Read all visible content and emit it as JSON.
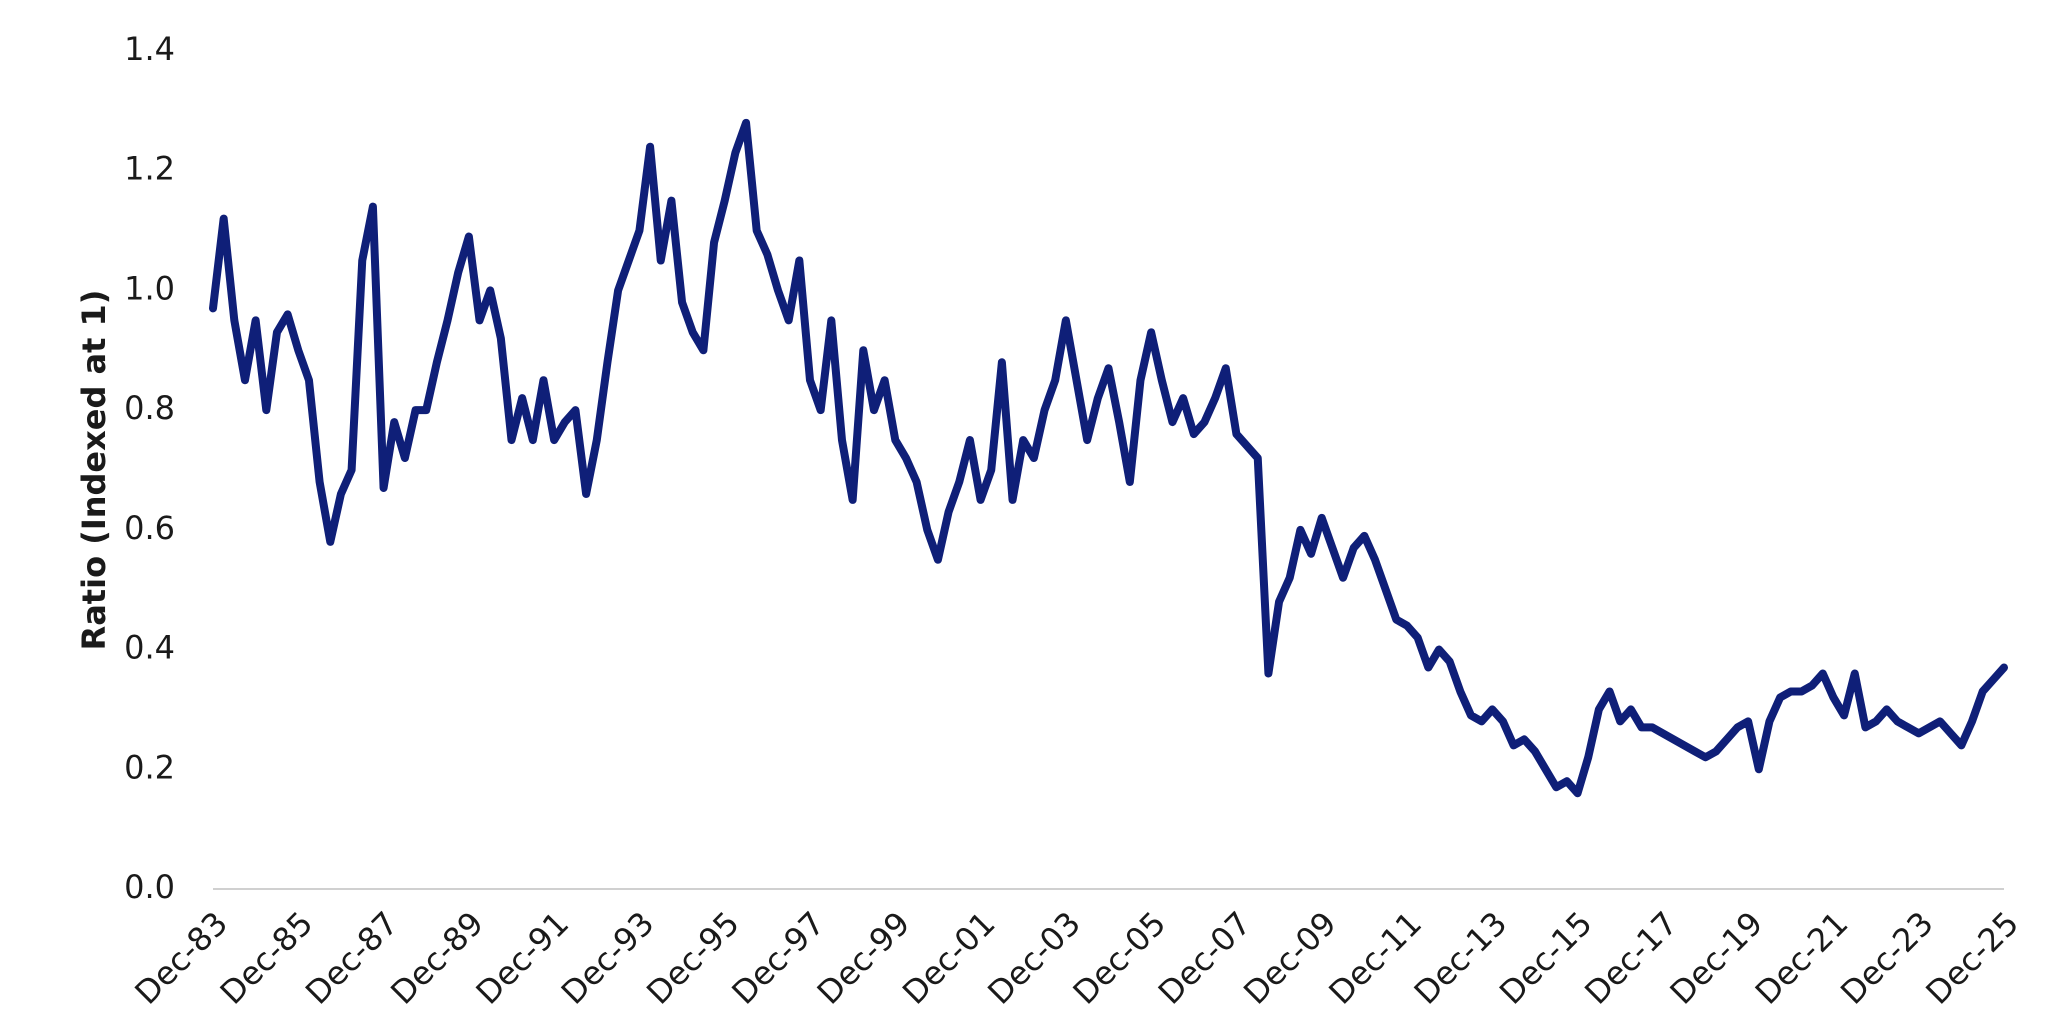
{
  "chart_data": {
    "type": "line",
    "y_label": "Ratio (Indexed at 1)",
    "color": "#0f1f78",
    "xlim": [
      1983.92,
      2025.92
    ],
    "xticks": [
      {
        "value": 1983.92,
        "label": "Dec-83"
      },
      {
        "value": 1985.92,
        "label": "Dec-85"
      },
      {
        "value": 1987.92,
        "label": "Dec-87"
      },
      {
        "value": 1989.92,
        "label": "Dec-89"
      },
      {
        "value": 1991.92,
        "label": "Dec-91"
      },
      {
        "value": 1993.92,
        "label": "Dec-93"
      },
      {
        "value": 1995.92,
        "label": "Dec-95"
      },
      {
        "value": 1997.92,
        "label": "Dec-97"
      },
      {
        "value": 1999.92,
        "label": "Dec-99"
      },
      {
        "value": 2001.92,
        "label": "Dec-01"
      },
      {
        "value": 2003.92,
        "label": "Dec-03"
      },
      {
        "value": 2005.92,
        "label": "Dec-05"
      },
      {
        "value": 2007.92,
        "label": "Dec-07"
      },
      {
        "value": 2009.92,
        "label": "Dec-09"
      },
      {
        "value": 2011.92,
        "label": "Dec-11"
      },
      {
        "value": 2013.92,
        "label": "Dec-13"
      },
      {
        "value": 2015.92,
        "label": "Dec-15"
      },
      {
        "value": 2017.92,
        "label": "Dec-17"
      },
      {
        "value": 2019.92,
        "label": "Dec-19"
      },
      {
        "value": 2021.92,
        "label": "Dec-21"
      },
      {
        "value": 2023.92,
        "label": "Dec-23"
      },
      {
        "value": 2025.92,
        "label": "Dec-25"
      }
    ],
    "ylim": [
      0,
      1.4
    ],
    "yticks": [
      {
        "value": 0,
        "label": "0.0"
      },
      0.2,
      0.4,
      0.6,
      0.8,
      {
        "value": 1,
        "label": "1.0"
      },
      1.2,
      1.4
    ],
    "x": [
      1983.92,
      1984.17,
      1984.42,
      1984.67,
      1984.92,
      1985.17,
      1985.42,
      1985.67,
      1985.92,
      1986.17,
      1986.42,
      1986.67,
      1986.92,
      1987.17,
      1987.42,
      1987.67,
      1987.92,
      1988.17,
      1988.42,
      1988.67,
      1988.92,
      1989.17,
      1989.42,
      1989.67,
      1989.92,
      1990.17,
      1990.42,
      1990.67,
      1990.92,
      1991.17,
      1991.42,
      1991.67,
      1991.92,
      1992.17,
      1992.42,
      1992.67,
      1992.92,
      1993.17,
      1993.42,
      1993.67,
      1993.92,
      1994.17,
      1994.42,
      1994.67,
      1994.92,
      1995.17,
      1995.42,
      1995.67,
      1995.92,
      1996.17,
      1996.42,
      1996.67,
      1996.92,
      1997.17,
      1997.42,
      1997.67,
      1997.92,
      1998.17,
      1998.42,
      1998.67,
      1998.92,
      1999.17,
      1999.42,
      1999.67,
      1999.92,
      2000.17,
      2000.42,
      2000.67,
      2000.92,
      2001.17,
      2001.42,
      2001.67,
      2001.92,
      2002.17,
      2002.42,
      2002.67,
      2002.92,
      2003.17,
      2003.42,
      2003.67,
      2003.92,
      2004.17,
      2004.42,
      2004.67,
      2004.92,
      2005.17,
      2005.42,
      2005.67,
      2005.92,
      2006.17,
      2006.42,
      2006.67,
      2006.92,
      2007.17,
      2007.42,
      2007.67,
      2007.92,
      2008.17,
      2008.42,
      2008.67,
      2008.92,
      2009.17,
      2009.42,
      2009.67,
      2009.92,
      2010.17,
      2010.42,
      2010.67,
      2010.92,
      2011.17,
      2011.42,
      2011.67,
      2011.92,
      2012.17,
      2012.42,
      2012.67,
      2012.92,
      2013.17,
      2013.42,
      2013.67,
      2013.92,
      2014.17,
      2014.42,
      2014.67,
      2014.92,
      2015.17,
      2015.42,
      2015.67,
      2015.92,
      2016.17,
      2016.42,
      2016.67,
      2016.92,
      2017.17,
      2017.42,
      2017.67,
      2017.92,
      2018.17,
      2018.42,
      2018.67,
      2018.92,
      2019.17,
      2019.42,
      2019.67,
      2019.92,
      2020.17,
      2020.42,
      2020.67,
      2020.92,
      2021.17,
      2021.42,
      2021.67,
      2021.92,
      2022.17,
      2022.42,
      2022.67,
      2022.92,
      2023.17,
      2023.42,
      2023.67,
      2023.92,
      2024.17,
      2024.42,
      2024.67,
      2024.92,
      2025.17,
      2025.42,
      2025.67,
      2025.92
    ],
    "values": [
      0.97,
      1.12,
      0.95,
      0.85,
      0.95,
      0.8,
      0.93,
      0.96,
      0.9,
      0.85,
      0.68,
      0.58,
      0.66,
      0.7,
      1.05,
      1.14,
      0.67,
      0.78,
      0.72,
      0.8,
      0.8,
      0.88,
      0.95,
      1.03,
      1.09,
      0.95,
      1.0,
      0.92,
      0.75,
      0.82,
      0.75,
      0.85,
      0.75,
      0.78,
      0.8,
      0.66,
      0.75,
      0.88,
      1.0,
      1.05,
      1.1,
      1.24,
      1.05,
      1.15,
      0.98,
      0.93,
      0.9,
      1.08,
      1.15,
      1.23,
      1.28,
      1.1,
      1.06,
      1.0,
      0.95,
      1.05,
      0.85,
      0.8,
      0.95,
      0.75,
      0.65,
      0.9,
      0.8,
      0.85,
      0.75,
      0.72,
      0.68,
      0.6,
      0.55,
      0.63,
      0.68,
      0.75,
      0.65,
      0.7,
      0.88,
      0.65,
      0.75,
      0.72,
      0.8,
      0.85,
      0.95,
      0.85,
      0.75,
      0.82,
      0.87,
      0.78,
      0.68,
      0.85,
      0.93,
      0.85,
      0.78,
      0.82,
      0.76,
      0.78,
      0.82,
      0.87,
      0.76,
      0.74,
      0.72,
      0.36,
      0.48,
      0.52,
      0.6,
      0.56,
      0.62,
      0.57,
      0.52,
      0.57,
      0.59,
      0.55,
      0.5,
      0.45,
      0.44,
      0.42,
      0.37,
      0.4,
      0.38,
      0.33,
      0.29,
      0.28,
      0.3,
      0.28,
      0.24,
      0.25,
      0.23,
      0.2,
      0.17,
      0.18,
      0.16,
      0.22,
      0.3,
      0.33,
      0.28,
      0.3,
      0.27,
      0.27,
      0.26,
      0.25,
      0.24,
      0.23,
      0.22,
      0.23,
      0.25,
      0.27,
      0.28,
      0.2,
      0.28,
      0.32,
      0.33,
      0.33,
      0.34,
      0.36,
      0.32,
      0.29,
      0.36,
      0.27,
      0.28,
      0.3,
      0.28,
      0.27,
      0.26,
      0.27,
      0.28,
      0.26,
      0.24,
      0.28,
      0.33,
      0.35,
      0.37
    ]
  }
}
